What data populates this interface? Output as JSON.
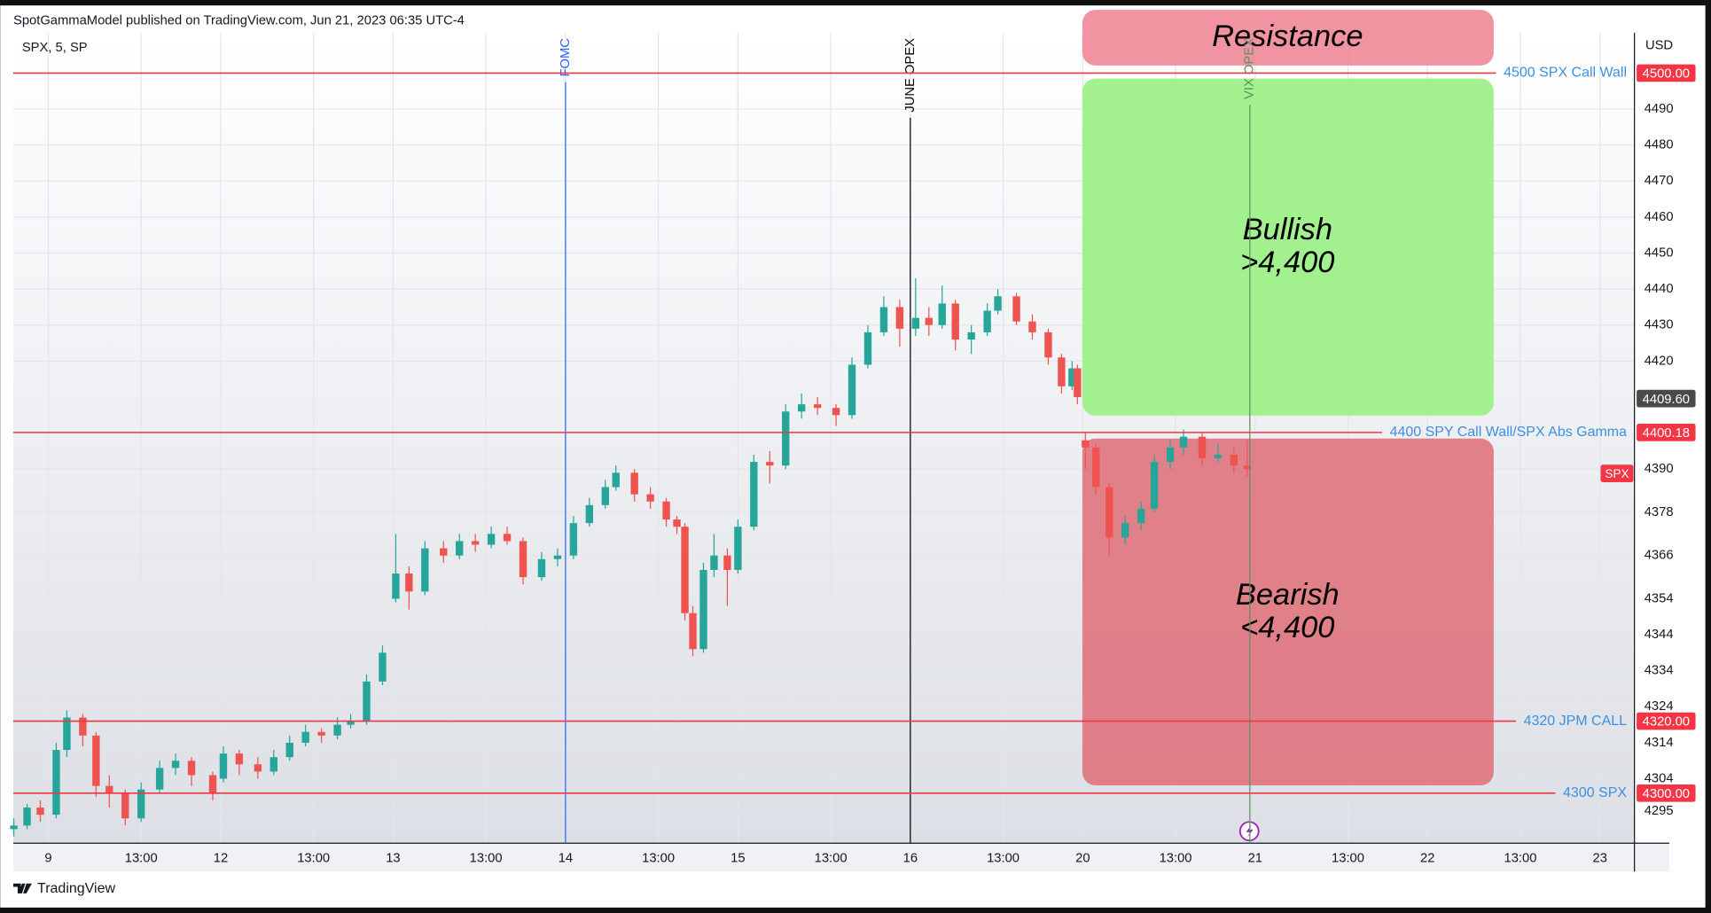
{
  "header": "SpotGammaModel published on TradingView.com, Jun 21, 2023 06:35 UTC-4",
  "footer": "TradingView",
  "chart_data": {
    "type": "candlestick",
    "symbol": "SPX, 5, SP",
    "series_name": "SPX",
    "currency": "USD",
    "up_color": "#26a69a",
    "down_color": "#ef5350",
    "grid": true,
    "xlim": [
      -1.32,
      59.8
    ],
    "xticks": [
      {
        "value": 0,
        "label": "9"
      },
      {
        "value": 3.5,
        "label": "13:00"
      },
      {
        "value": 6.5,
        "label": "12"
      },
      {
        "value": 10,
        "label": "13:00"
      },
      {
        "value": 13,
        "label": "13"
      },
      {
        "value": 16.5,
        "label": "13:00"
      },
      {
        "value": 19.5,
        "label": "14"
      },
      {
        "value": 23,
        "label": "13:00"
      },
      {
        "value": 26,
        "label": "15"
      },
      {
        "value": 29.5,
        "label": "13:00"
      },
      {
        "value": 32.5,
        "label": "16"
      },
      {
        "value": 36,
        "label": "13:00"
      },
      {
        "value": 39,
        "label": "20"
      },
      {
        "value": 42.5,
        "label": "13:00"
      },
      {
        "value": 45.5,
        "label": "21"
      },
      {
        "value": 49,
        "label": "13:00"
      },
      {
        "value": 52,
        "label": "22"
      },
      {
        "value": 55.5,
        "label": "13:00"
      },
      {
        "value": 58.5,
        "label": "23"
      }
    ],
    "ylim": [
      4286.1,
      4510.3
    ],
    "yticks": [
      4295,
      4304,
      4314,
      4324,
      4334,
      4344,
      4354,
      4366,
      4378,
      4390,
      4420,
      4430,
      4440,
      4450,
      4460,
      4470,
      4480,
      4490
    ],
    "last_price": {
      "value": 4409.6,
      "label": "4409.60"
    },
    "levels": [
      {
        "label": "4500 SPX Call Wall",
        "value": 4500,
        "value_label": "4500.00"
      },
      {
        "label": "4400 SPY Call Wall/SPX Abs Gamma",
        "value": 4400.18,
        "value_label": "4400.18"
      },
      {
        "label": "4320 JPM CALL",
        "value": 4320,
        "value_label": "4320.00"
      },
      {
        "label": "4300 SPX",
        "value": 4300,
        "value_label": "4300.00"
      }
    ],
    "events": [
      {
        "label": "FOMC",
        "x": 19.5,
        "color": "#2962ff"
      },
      {
        "label": "JUNE OPEX",
        "x": 32.5,
        "color": "#000000"
      },
      {
        "label": "VIX OPEX",
        "x": 45.3,
        "color": "#5f8f5f"
      }
    ],
    "zones": [
      {
        "lines": [
          "Resistance"
        ]
      },
      {
        "lines": [
          "Bullish",
          ">4,400"
        ]
      },
      {
        "lines": [
          "Bearish",
          "<4,400"
        ]
      }
    ],
    "candles": [
      {
        "x": -1.3,
        "open": 4290,
        "high": 4293,
        "low": 4288,
        "close": 4291
      },
      {
        "x": -0.8,
        "open": 4291,
        "high": 4297,
        "low": 4290,
        "close": 4296
      },
      {
        "x": -0.3,
        "open": 4296,
        "high": 4298,
        "low": 4292,
        "close": 4294
      },
      {
        "x": 0.3,
        "open": 4294,
        "high": 4314,
        "low": 4293,
        "close": 4312
      },
      {
        "x": 0.7,
        "open": 4312,
        "high": 4323,
        "low": 4310,
        "close": 4321
      },
      {
        "x": 1.3,
        "open": 4321,
        "high": 4322,
        "low": 4313,
        "close": 4316
      },
      {
        "x": 1.8,
        "open": 4316,
        "high": 4317,
        "low": 4299,
        "close": 4302
      },
      {
        "x": 2.3,
        "open": 4302,
        "high": 4305,
        "low": 4296,
        "close": 4300
      },
      {
        "x": 2.9,
        "open": 4300,
        "high": 4301,
        "low": 4291,
        "close": 4293
      },
      {
        "x": 3.5,
        "open": 4293,
        "high": 4303,
        "low": 4292,
        "close": 4301
      },
      {
        "x": 4.2,
        "open": 4301,
        "high": 4309,
        "low": 4300,
        "close": 4307
      },
      {
        "x": 4.8,
        "open": 4307,
        "high": 4311,
        "low": 4305,
        "close": 4309
      },
      {
        "x": 5.4,
        "open": 4309,
        "high": 4310,
        "low": 4302,
        "close": 4305
      },
      {
        "x": 6.2,
        "open": 4305,
        "high": 4306,
        "low": 4298,
        "close": 4300
      },
      {
        "x": 6.6,
        "open": 4304,
        "high": 4313,
        "low": 4303,
        "close": 4311
      },
      {
        "x": 7.2,
        "open": 4311,
        "high": 4312,
        "low": 4305,
        "close": 4308
      },
      {
        "x": 7.9,
        "open": 4308,
        "high": 4310,
        "low": 4304,
        "close": 4306
      },
      {
        "x": 8.5,
        "open": 4306,
        "high": 4312,
        "low": 4305,
        "close": 4310
      },
      {
        "x": 9.1,
        "open": 4310,
        "high": 4316,
        "low": 4309,
        "close": 4314
      },
      {
        "x": 9.7,
        "open": 4314,
        "high": 4319,
        "low": 4313,
        "close": 4317
      },
      {
        "x": 10.3,
        "open": 4317,
        "high": 4318,
        "low": 4314,
        "close": 4316
      },
      {
        "x": 10.9,
        "open": 4316,
        "high": 4321,
        "low": 4315,
        "close": 4319
      },
      {
        "x": 11.4,
        "open": 4319,
        "high": 4322,
        "low": 4318,
        "close": 4320
      },
      {
        "x": 12.0,
        "open": 4320,
        "high": 4333,
        "low": 4319,
        "close": 4331
      },
      {
        "x": 12.6,
        "open": 4331,
        "high": 4341,
        "low": 4330,
        "close": 4339
      },
      {
        "x": 13.1,
        "open": 4354,
        "high": 4372,
        "low": 4353,
        "close": 4361
      },
      {
        "x": 13.6,
        "open": 4361,
        "high": 4363,
        "low": 4351,
        "close": 4356
      },
      {
        "x": 14.2,
        "open": 4356,
        "high": 4370,
        "low": 4355,
        "close": 4368
      },
      {
        "x": 14.9,
        "open": 4368,
        "high": 4370,
        "low": 4364,
        "close": 4366
      },
      {
        "x": 15.5,
        "open": 4366,
        "high": 4372,
        "low": 4365,
        "close": 4370
      },
      {
        "x": 16.1,
        "open": 4370,
        "high": 4372,
        "low": 4367,
        "close": 4369
      },
      {
        "x": 16.7,
        "open": 4369,
        "high": 4374,
        "low": 4368,
        "close": 4372
      },
      {
        "x": 17.3,
        "open": 4372,
        "high": 4374,
        "low": 4369,
        "close": 4370
      },
      {
        "x": 17.9,
        "open": 4370,
        "high": 4371,
        "low": 4358,
        "close": 4360
      },
      {
        "x": 18.6,
        "open": 4360,
        "high": 4367,
        "low": 4359,
        "close": 4365
      },
      {
        "x": 19.2,
        "open": 4365,
        "high": 4368,
        "low": 4363,
        "close": 4366
      },
      {
        "x": 19.8,
        "open": 4366,
        "high": 4377,
        "low": 4365,
        "close": 4375
      },
      {
        "x": 20.4,
        "open": 4375,
        "high": 4382,
        "low": 4374,
        "close": 4380
      },
      {
        "x": 21.0,
        "open": 4380,
        "high": 4387,
        "low": 4379,
        "close": 4385
      },
      {
        "x": 21.4,
        "open": 4385,
        "high": 4391,
        "low": 4384,
        "close": 4389
      },
      {
        "x": 22.1,
        "open": 4389,
        "high": 4390,
        "low": 4381,
        "close": 4383
      },
      {
        "x": 22.7,
        "open": 4383,
        "high": 4385,
        "low": 4379,
        "close": 4381
      },
      {
        "x": 23.3,
        "open": 4381,
        "high": 4382,
        "low": 4374,
        "close": 4376
      },
      {
        "x": 23.7,
        "open": 4376,
        "high": 4377,
        "low": 4372,
        "close": 4374
      },
      {
        "x": 24.0,
        "open": 4374,
        "high": 4375,
        "low": 4348,
        "close": 4350
      },
      {
        "x": 24.3,
        "open": 4350,
        "high": 4352,
        "low": 4338,
        "close": 4340
      },
      {
        "x": 24.7,
        "open": 4340,
        "high": 4364,
        "low": 4339,
        "close": 4362
      },
      {
        "x": 25.1,
        "open": 4362,
        "high": 4372,
        "low": 4360,
        "close": 4366
      },
      {
        "x": 25.6,
        "open": 4366,
        "high": 4368,
        "low": 4352,
        "close": 4362
      },
      {
        "x": 26.0,
        "open": 4362,
        "high": 4376,
        "low": 4361,
        "close": 4374
      },
      {
        "x": 26.6,
        "open": 4374,
        "high": 4394,
        "low": 4373,
        "close": 4392
      },
      {
        "x": 27.2,
        "open": 4392,
        "high": 4395,
        "low": 4386,
        "close": 4391
      },
      {
        "x": 27.8,
        "open": 4391,
        "high": 4408,
        "low": 4390,
        "close": 4406
      },
      {
        "x": 28.4,
        "open": 4406,
        "high": 4411,
        "low": 4404,
        "close": 4408
      },
      {
        "x": 29.0,
        "open": 4408,
        "high": 4410,
        "low": 4405,
        "close": 4407
      },
      {
        "x": 29.7,
        "open": 4407,
        "high": 4408,
        "low": 4402,
        "close": 4405
      },
      {
        "x": 30.3,
        "open": 4405,
        "high": 4421,
        "low": 4404,
        "close": 4419
      },
      {
        "x": 30.9,
        "open": 4419,
        "high": 4430,
        "low": 4418,
        "close": 4428
      },
      {
        "x": 31.5,
        "open": 4428,
        "high": 4438,
        "low": 4427,
        "close": 4435
      },
      {
        "x": 32.1,
        "open": 4435,
        "high": 4437,
        "low": 4424,
        "close": 4429
      },
      {
        "x": 32.7,
        "open": 4429,
        "high": 4443,
        "low": 4427,
        "close": 4432
      },
      {
        "x": 33.2,
        "open": 4432,
        "high": 4435,
        "low": 4427,
        "close": 4430
      },
      {
        "x": 33.7,
        "open": 4430,
        "high": 4441,
        "low": 4429,
        "close": 4436
      },
      {
        "x": 34.2,
        "open": 4436,
        "high": 4437,
        "low": 4423,
        "close": 4426
      },
      {
        "x": 34.8,
        "open": 4426,
        "high": 4430,
        "low": 4422,
        "close": 4428
      },
      {
        "x": 35.4,
        "open": 4428,
        "high": 4436,
        "low": 4427,
        "close": 4434
      },
      {
        "x": 35.8,
        "open": 4434,
        "high": 4440,
        "low": 4433,
        "close": 4438
      },
      {
        "x": 36.5,
        "open": 4438,
        "high": 4439,
        "low": 4430,
        "close": 4431
      },
      {
        "x": 37.1,
        "open": 4431,
        "high": 4433,
        "low": 4426,
        "close": 4428
      },
      {
        "x": 37.7,
        "open": 4428,
        "high": 4429,
        "low": 4419,
        "close": 4421
      },
      {
        "x": 38.2,
        "open": 4421,
        "high": 4422,
        "low": 4411,
        "close": 4413
      },
      {
        "x": 38.6,
        "open": 4413,
        "high": 4420,
        "low": 4412,
        "close": 4418
      },
      {
        "x": 38.8,
        "open": 4418,
        "high": 4419,
        "low": 4408,
        "close": 4410
      },
      {
        "x": 39.1,
        "open": 4398,
        "high": 4400,
        "low": 4390,
        "close": 4396
      },
      {
        "x": 39.5,
        "open": 4396,
        "high": 4397,
        "low": 4383,
        "close": 4385
      },
      {
        "x": 40.0,
        "open": 4385,
        "high": 4386,
        "low": 4366,
        "close": 4371
      },
      {
        "x": 40.6,
        "open": 4371,
        "high": 4377,
        "low": 4369,
        "close": 4375
      },
      {
        "x": 41.2,
        "open": 4375,
        "high": 4381,
        "low": 4373,
        "close": 4379
      },
      {
        "x": 41.7,
        "open": 4379,
        "high": 4394,
        "low": 4378,
        "close": 4392
      },
      {
        "x": 42.3,
        "open": 4392,
        "high": 4398,
        "low": 4390,
        "close": 4396
      },
      {
        "x": 42.8,
        "open": 4396,
        "high": 4401,
        "low": 4394,
        "close": 4399
      },
      {
        "x": 43.5,
        "open": 4399,
        "high": 4400,
        "low": 4391,
        "close": 4393
      },
      {
        "x": 44.1,
        "open": 4393,
        "high": 4397,
        "low": 4392,
        "close": 4394
      },
      {
        "x": 44.7,
        "open": 4394,
        "high": 4396,
        "low": 4389,
        "close": 4391
      },
      {
        "x": 45.2,
        "open": 4391,
        "high": 4398,
        "low": 4388,
        "close": 4390
      }
    ]
  }
}
